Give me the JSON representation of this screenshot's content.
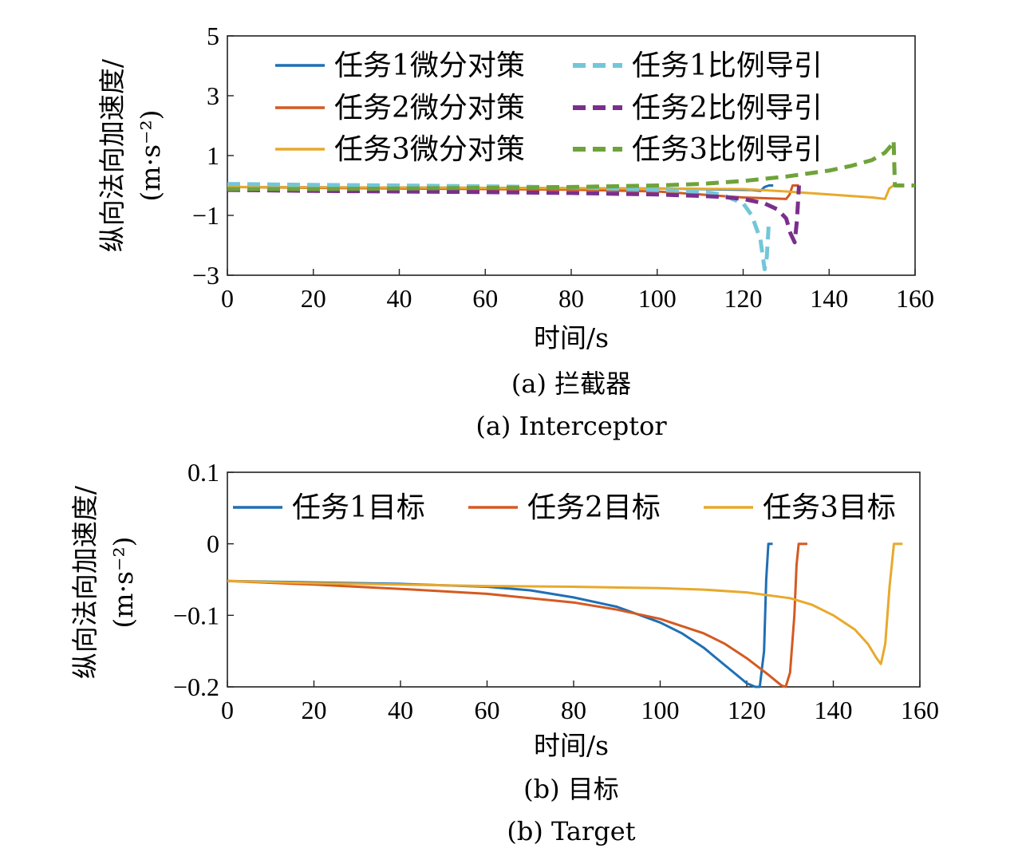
{
  "colors": {
    "blue": "#1f6fb4",
    "orange": "#d45a22",
    "yellow": "#e8a92c",
    "light_blue": "#73c6d9",
    "purple": "#7a2f8c",
    "green": "#6fa33a"
  },
  "chart_data": [
    {
      "type": "line",
      "ylabel": "纵向法向加速度/",
      "ylabel_unit": "(m·s⁻²)",
      "xlabel": "时间/s",
      "caption_cn": "(a) 拦截器",
      "caption_en": "(a) Interceptor",
      "xlim": [
        0,
        160
      ],
      "ylim": [
        -3,
        5
      ],
      "xticks": [
        0,
        20,
        40,
        60,
        80,
        100,
        120,
        140,
        160
      ],
      "yticks": [
        -3,
        -1,
        1,
        3,
        5
      ],
      "xtick_labels": [
        "0",
        "20",
        "40",
        "60",
        "80",
        "100",
        "120",
        "140",
        "160"
      ],
      "ytick_labels": [
        "−3",
        "−1",
        "1",
        "3",
        "5"
      ],
      "legend_position": "top",
      "series": [
        {
          "name": "任务1微分对策",
          "color": "#1f6fb4",
          "dash": false,
          "x": [
            0,
            20,
            40,
            60,
            80,
            100,
            110,
            122,
            124,
            125,
            126,
            127
          ],
          "y": [
            -0.05,
            -0.06,
            -0.07,
            -0.08,
            -0.09,
            -0.1,
            -0.12,
            -0.15,
            -0.18,
            -0.05,
            0,
            0
          ]
        },
        {
          "name": "任务2微分对策",
          "color": "#d45a22",
          "dash": false,
          "x": [
            0,
            20,
            40,
            60,
            80,
            100,
            110,
            120,
            130,
            130.8,
            131.5,
            133
          ],
          "y": [
            -0.05,
            -0.08,
            -0.1,
            -0.12,
            -0.14,
            -0.2,
            -0.3,
            -0.4,
            -0.45,
            -0.3,
            0,
            0
          ]
        },
        {
          "name": "任务3微分对策",
          "color": "#e8a92c",
          "dash": false,
          "x": [
            0,
            20,
            40,
            60,
            80,
            100,
            120,
            130,
            140,
            150,
            153,
            154,
            155,
            156
          ],
          "y": [
            -0.05,
            -0.06,
            -0.07,
            -0.08,
            -0.09,
            -0.1,
            -0.12,
            -0.2,
            -0.3,
            -0.4,
            -0.45,
            -0.1,
            0,
            0
          ]
        },
        {
          "name": "任务1比例导引",
          "color": "#73c6d9",
          "dash": true,
          "x": [
            0,
            20,
            40,
            60,
            80,
            100,
            110,
            115,
            120,
            122,
            124,
            125,
            125.5,
            126
          ],
          "y": [
            0.05,
            0.02,
            0,
            -0.03,
            -0.06,
            -0.15,
            -0.2,
            -0.3,
            -0.6,
            -1.0,
            -1.8,
            -2.8,
            -2.4,
            -1.2
          ]
        },
        {
          "name": "任务2比例导引",
          "color": "#7a2f8c",
          "dash": true,
          "x": [
            0,
            20,
            40,
            60,
            80,
            100,
            110,
            115,
            120,
            125,
            128,
            130,
            131,
            132,
            132.5,
            133
          ],
          "y": [
            -0.15,
            -0.18,
            -0.2,
            -0.22,
            -0.25,
            -0.3,
            -0.35,
            -0.38,
            -0.45,
            -0.6,
            -0.8,
            -1.1,
            -1.6,
            -1.9,
            -1.2,
            0
          ]
        },
        {
          "name": "任务3比例导引",
          "color": "#6fa33a",
          "dash": true,
          "x": [
            0,
            20,
            40,
            60,
            80,
            100,
            110,
            120,
            130,
            140,
            145,
            150,
            153,
            154.5,
            155,
            155.3,
            156,
            160
          ],
          "y": [
            -0.12,
            -0.12,
            -0.1,
            -0.08,
            -0.05,
            0,
            0.05,
            0.15,
            0.3,
            0.5,
            0.65,
            0.85,
            1.1,
            1.35,
            1.5,
            0,
            0,
            0
          ]
        }
      ]
    },
    {
      "type": "line",
      "ylabel": "纵向法向加速度/",
      "ylabel_unit": "(m·s⁻²)",
      "xlabel": "时间/s",
      "caption_cn": "(b) 目标",
      "caption_en": "(b) Target",
      "xlim": [
        0,
        160
      ],
      "ylim": [
        -0.2,
        0.1
      ],
      "xticks": [
        0,
        20,
        40,
        60,
        80,
        100,
        120,
        140,
        160
      ],
      "yticks": [
        -0.2,
        -0.1,
        0,
        0.1
      ],
      "xtick_labels": [
        "0",
        "20",
        "40",
        "60",
        "80",
        "100",
        "120",
        "140",
        "160"
      ],
      "ytick_labels": [
        "−0.2",
        "−0.1",
        "0",
        "0.1"
      ],
      "legend_position": "top",
      "series": [
        {
          "name": "任务1目标",
          "color": "#1f6fb4",
          "dash": false,
          "x": [
            0,
            20,
            40,
            60,
            70,
            80,
            90,
            100,
            105,
            110,
            115,
            118,
            120,
            122,
            123,
            124,
            124.5,
            125,
            126
          ],
          "y": [
            -0.052,
            -0.054,
            -0.056,
            -0.06,
            -0.065,
            -0.075,
            -0.088,
            -0.11,
            -0.125,
            -0.145,
            -0.17,
            -0.185,
            -0.195,
            -0.2,
            -0.2,
            -0.15,
            -0.05,
            0,
            0
          ]
        },
        {
          "name": "任务2目标",
          "color": "#d45a22",
          "dash": false,
          "x": [
            0,
            20,
            40,
            60,
            80,
            90,
            100,
            110,
            115,
            120,
            125,
            128,
            129,
            130,
            131,
            131.5,
            132,
            134
          ],
          "y": [
            -0.052,
            -0.057,
            -0.063,
            -0.07,
            -0.082,
            -0.092,
            -0.105,
            -0.125,
            -0.14,
            -0.16,
            -0.183,
            -0.198,
            -0.2,
            -0.18,
            -0.1,
            -0.03,
            0,
            0
          ]
        },
        {
          "name": "任务3目标",
          "color": "#e8a92c",
          "dash": false,
          "x": [
            0,
            20,
            40,
            60,
            80,
            100,
            110,
            120,
            130,
            135,
            140,
            145,
            148,
            150,
            151,
            152,
            153,
            154,
            156
          ],
          "y": [
            -0.052,
            -0.055,
            -0.057,
            -0.059,
            -0.06,
            -0.062,
            -0.064,
            -0.068,
            -0.076,
            -0.085,
            -0.1,
            -0.12,
            -0.14,
            -0.16,
            -0.168,
            -0.14,
            -0.06,
            0,
            0
          ]
        }
      ]
    }
  ]
}
